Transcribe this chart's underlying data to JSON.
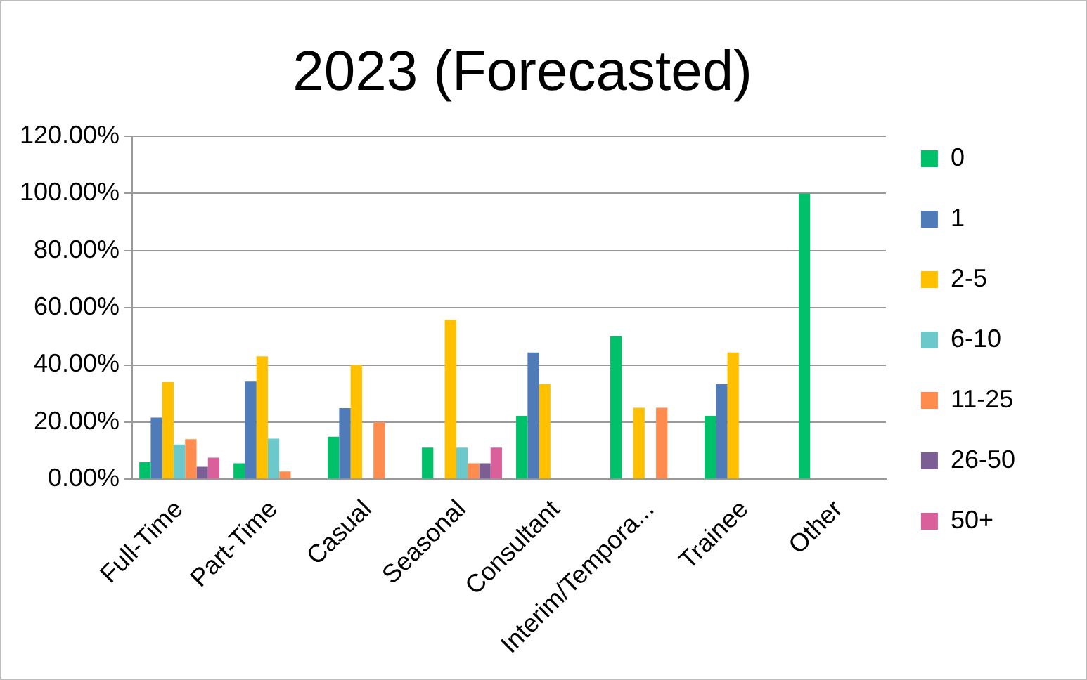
{
  "chart_data": {
    "type": "bar",
    "title": "2023 (Forecasted)",
    "categories": [
      "Full-Time",
      "Part-Time",
      "Casual",
      "Seasonal",
      "Consultant",
      "Interim/Tempora...",
      "Trainee",
      "Other"
    ],
    "series": [
      {
        "name": "0",
        "color": "#00c06a",
        "values": [
          6,
          5.6,
          14.9,
          11.1,
          22.2,
          50,
          22.2,
          100
        ]
      },
      {
        "name": "1",
        "color": "#4f7bb8",
        "values": [
          21.6,
          34.2,
          24.9,
          0,
          44.4,
          0,
          33.3,
          0
        ]
      },
      {
        "name": "2-5",
        "color": "#ffc000",
        "values": [
          34,
          43,
          40,
          55.8,
          33.3,
          25,
          44.4,
          0
        ]
      },
      {
        "name": "6-10",
        "color": "#6cc9cb",
        "values": [
          12.2,
          14.2,
          0,
          11.1,
          0,
          0,
          0,
          0
        ]
      },
      {
        "name": "11-25",
        "color": "#ff8c4f",
        "values": [
          14,
          2.7,
          20,
          5.6,
          0,
          25,
          0,
          0
        ]
      },
      {
        "name": "26-50",
        "color": "#7b5f94",
        "values": [
          4.4,
          0,
          0,
          5.6,
          0,
          0,
          0,
          0
        ]
      },
      {
        "name": "50+",
        "color": "#d9609a",
        "values": [
          7.6,
          0,
          0,
          11.1,
          0,
          0,
          0,
          0
        ]
      }
    ],
    "ylim": [
      0,
      120
    ],
    "yticks": [
      {
        "value": 0,
        "label": "0.00%"
      },
      {
        "value": 20,
        "label": "20.00%"
      },
      {
        "value": 40,
        "label": "40.00%"
      },
      {
        "value": 60,
        "label": "60.00%"
      },
      {
        "value": 80,
        "label": "80.00%"
      },
      {
        "value": 100,
        "label": "100.00%"
      },
      {
        "value": 120,
        "label": "120.00%"
      }
    ],
    "grid": "y",
    "legend": "right"
  }
}
